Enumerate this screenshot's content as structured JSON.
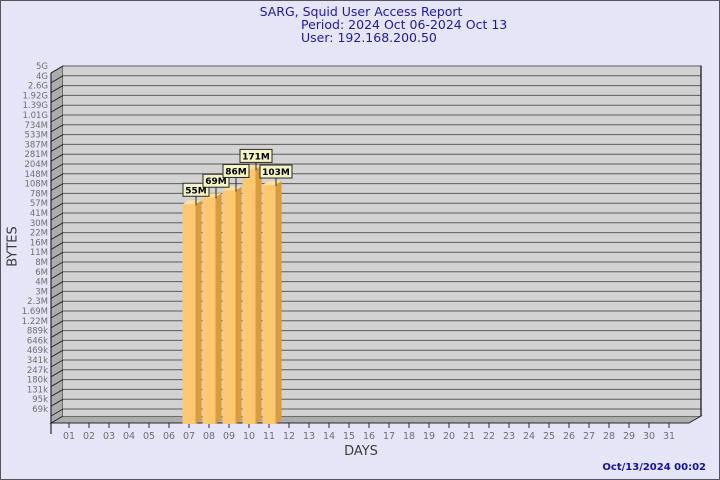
{
  "title": {
    "line1": "SARG, Squid User Access Report",
    "line2": "Period: 2024 Oct 06-2024 Oct 13",
    "line3": "User: 192.168.200.50"
  },
  "footer": {
    "timestamp": "Oct/13/2024 00:02"
  },
  "chart_data": {
    "type": "bar",
    "title": "SARG, Squid User Access Report",
    "subtitle": "Period: 2024 Oct 06-2024 Oct 13",
    "user": "192.168.200.50",
    "xlabel": "DAYS",
    "ylabel": "BYTES",
    "yscale": "log",
    "ylim": [
      69000,
      5000000000
    ],
    "grid": true,
    "x_ticks": [
      "01",
      "02",
      "03",
      "04",
      "05",
      "06",
      "07",
      "08",
      "09",
      "10",
      "11",
      "12",
      "13",
      "14",
      "15",
      "16",
      "17",
      "18",
      "19",
      "20",
      "21",
      "22",
      "23",
      "24",
      "25",
      "26",
      "27",
      "28",
      "29",
      "30",
      "31"
    ],
    "y_tick_labels": [
      "5G",
      "4G",
      "2.6G",
      "1.92G",
      "1.39G",
      "1.01G",
      "734M",
      "533M",
      "387M",
      "281M",
      "204M",
      "148M",
      "108M",
      "78M",
      "57M",
      "41M",
      "30M",
      "22M",
      "16M",
      "11M",
      "8M",
      "6M",
      "4M",
      "3M",
      "2.3M",
      "1.69M",
      "1.22M",
      "889k",
      "646k",
      "469k",
      "341k",
      "247k",
      "180k",
      "131k",
      "95k",
      "69k"
    ],
    "y_tick_values": [
      5000000000,
      4000000000,
      2600000000,
      1920000000,
      1390000000,
      1010000000,
      734000000,
      533000000,
      387000000,
      281000000,
      204000000,
      148000000,
      108000000,
      78000000,
      57000000,
      41000000,
      30000000,
      22000000,
      16000000,
      11000000,
      8000000,
      6000000,
      4000000,
      3000000,
      2300000,
      1690000,
      1220000,
      889000,
      646000,
      469000,
      341000,
      247000,
      180000,
      131000,
      95000,
      69000
    ],
    "bars": [
      {
        "day": "07",
        "label": "55M",
        "value": 55000000
      },
      {
        "day": "08",
        "label": "69M",
        "value": 69000000
      },
      {
        "day": "09",
        "label": "86M",
        "value": 86000000
      },
      {
        "day": "10",
        "label": "171M",
        "value": 171000000
      },
      {
        "day": "11",
        "label": "103M",
        "value": 103000000
      }
    ],
    "colors": {
      "background": "#e5e5f7",
      "plot_bg": "#d2d2d2",
      "grid": "#5c5c5c",
      "wall": "#acacac",
      "outline": "#2a2a2a",
      "bar_face": "#fec871",
      "bar_side": "#d89b3f",
      "bar_top": "#ffdf9e",
      "value_box_bg": "#f3f3c4",
      "title_text": "#1c1c9e",
      "tick_text": "#6f6f6f"
    }
  }
}
